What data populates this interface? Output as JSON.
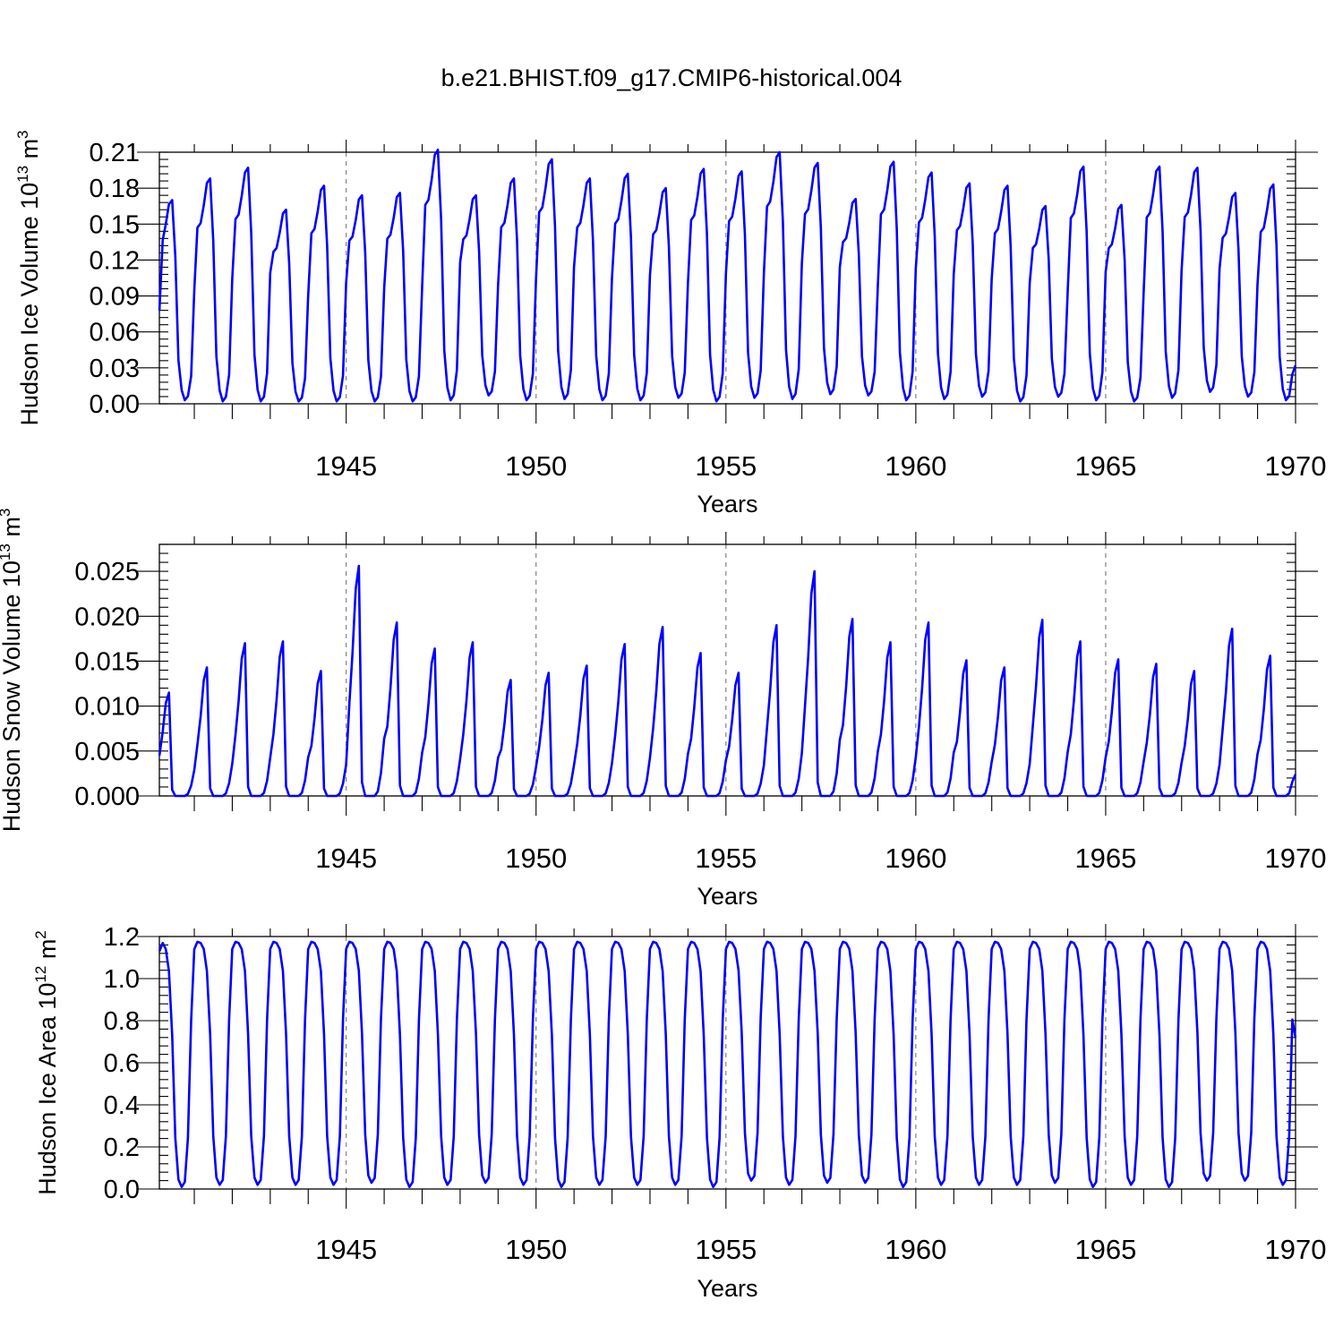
{
  "chart_data": [
    {
      "type": "line",
      "title": "b.e21.BHIST.f09_g17.CMIP6-historical.004",
      "ylabel": "Hudson Ice Volume 10",
      "ylabel_exp": "13",
      "ylabel_unit": " m",
      "ylabel_unit_exp": "3",
      "xlabel": "Years",
      "xlim": [
        1940.08,
        1970.0
      ],
      "ylim": [
        0.0,
        0.21
      ],
      "yticks": [
        0.0,
        0.03,
        0.06,
        0.09,
        0.12,
        0.15,
        0.18,
        0.21
      ],
      "yticklabels": [
        "0.00",
        "0.03",
        "0.06",
        "0.09",
        "0.12",
        "0.15",
        "0.18",
        "0.21"
      ],
      "xticks": [
        1945,
        1950,
        1955,
        1960,
        1965,
        1970
      ],
      "xticklabels": [
        "1945",
        "1950",
        "1955",
        "1960",
        "1965",
        "1970"
      ],
      "grid_x": [
        1945,
        1950,
        1955,
        1960,
        1965
      ],
      "color": "#0000ff",
      "x_start": 1940.083,
      "x_step": 0.08333,
      "annual_peaks": [
        0.17,
        0.188,
        0.197,
        0.162,
        0.182,
        0.174,
        0.176,
        0.212,
        0.174,
        0.188,
        0.204,
        0.188,
        0.192,
        0.18,
        0.196,
        0.194,
        0.21,
        0.201,
        0.171,
        0.202,
        0.193,
        0.184,
        0.182,
        0.165,
        0.198,
        0.166,
        0.198,
        0.197,
        0.176,
        0.183
      ],
      "annual_minima": [
        0.003,
        0.002,
        0.002,
        0.002,
        0.002,
        0.002,
        0.002,
        0.003,
        0.007,
        0.003,
        0.004,
        0.003,
        0.003,
        0.005,
        0.002,
        0.005,
        0.004,
        0.008,
        0.007,
        0.003,
        0.004,
        0.006,
        0.002,
        0.006,
        0.003,
        0.002,
        0.005,
        0.01,
        0.006,
        0.003
      ],
      "start_value": 0.078,
      "end_value": 0.032
    },
    {
      "type": "line",
      "ylabel": "Hudson Snow Volume 10",
      "ylabel_exp": "13",
      "ylabel_unit": " m",
      "ylabel_unit_exp": "3",
      "xlabel": "Years",
      "xlim": [
        1940.08,
        1970.0
      ],
      "ylim": [
        0.0,
        0.028
      ],
      "yticks": [
        0.0,
        0.005,
        0.01,
        0.015,
        0.02,
        0.025
      ],
      "yticklabels": [
        "0.000",
        "0.005",
        "0.010",
        "0.015",
        "0.020",
        "0.025"
      ],
      "xticks": [
        1945,
        1950,
        1955,
        1960,
        1965,
        1970
      ],
      "xticklabels": [
        "1945",
        "1950",
        "1955",
        "1960",
        "1965",
        "1970"
      ],
      "grid_x": [
        1945,
        1950,
        1955,
        1960,
        1965
      ],
      "color": "#0000ff",
      "x_start": 1940.083,
      "x_step": 0.08333,
      "annual_peaks": [
        0.0115,
        0.0143,
        0.017,
        0.0172,
        0.0139,
        0.0256,
        0.0193,
        0.0164,
        0.0171,
        0.0129,
        0.0137,
        0.0145,
        0.0169,
        0.0188,
        0.0159,
        0.0137,
        0.019,
        0.025,
        0.0197,
        0.0171,
        0.0193,
        0.0151,
        0.0143,
        0.0196,
        0.0172,
        0.0152,
        0.0147,
        0.0139,
        0.0186,
        0.0156
      ],
      "start_value": 0.0045,
      "end_value": 0.0024
    },
    {
      "type": "line",
      "ylabel": "Hudson Ice Area 10",
      "ylabel_exp": "12",
      "ylabel_unit": " m",
      "ylabel_unit_exp": "2",
      "xlabel": "Years",
      "xlim": [
        1940.08,
        1970.0
      ],
      "ylim": [
        0.0,
        1.2
      ],
      "yticks": [
        0.0,
        0.2,
        0.4,
        0.6,
        0.8,
        1.0,
        1.2
      ],
      "yticklabels": [
        "0.0",
        "0.2",
        "0.4",
        "0.6",
        "0.8",
        "1.0",
        "1.2"
      ],
      "xticks": [
        1945,
        1950,
        1955,
        1960,
        1965,
        1970
      ],
      "xticklabels": [
        "1945",
        "1950",
        "1955",
        "1960",
        "1965",
        "1970"
      ],
      "grid_x": [
        1945,
        1950,
        1955,
        1960,
        1965
      ],
      "color": "#0000ff",
      "x_start": 1940.083,
      "x_step": 0.08333,
      "annual_peak": 1.175,
      "annual_minima": [
        0.01,
        0.02,
        0.02,
        0.02,
        0.02,
        0.03,
        0.01,
        0.02,
        0.03,
        0.02,
        0.01,
        0.02,
        0.02,
        0.02,
        0.01,
        0.04,
        0.02,
        0.03,
        0.03,
        0.01,
        0.02,
        0.02,
        0.02,
        0.03,
        0.01,
        0.02,
        0.01,
        0.04,
        0.04,
        0.02
      ],
      "start_value": 1.13,
      "end_value": 0.72
    }
  ]
}
